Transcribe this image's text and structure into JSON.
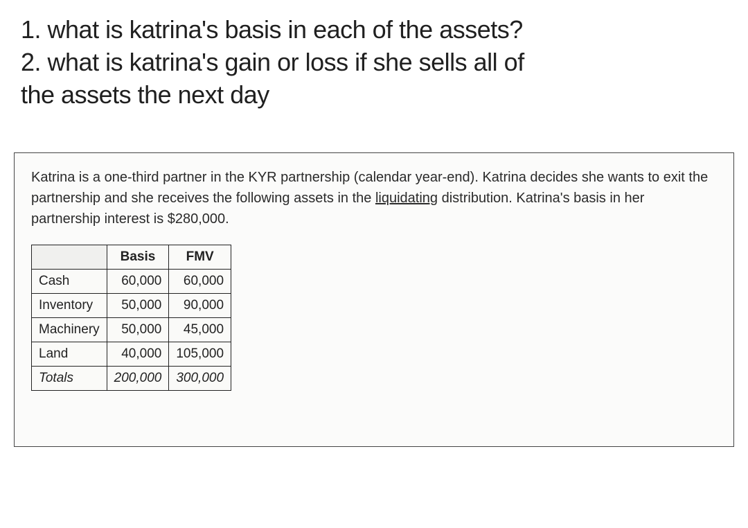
{
  "questions": {
    "q1": "1. what is katrina's basis in each of the assets?",
    "q2_part1": "2. what is katrina's gain or loss if she sells all of",
    "q2_part2": "the assets the next day"
  },
  "scenario": {
    "text_before_underline": "Katrina is a one-third partner in the KYR partnership (calendar year-end). Katrina decides she wants to exit the partnership and she receives the following assets in the ",
    "underline_word": "liquidating",
    "text_after_underline": " distribution. Katrina's basis in her partnership interest is $280,000."
  },
  "table": {
    "headers": {
      "col1": "",
      "col2": "Basis",
      "col3": "FMV"
    },
    "rows": [
      {
        "label": "Cash",
        "basis": "60,000",
        "fmv": "60,000"
      },
      {
        "label": "Inventory",
        "basis": "50,000",
        "fmv": "90,000"
      },
      {
        "label": "Machinery",
        "basis": "50,000",
        "fmv": "45,000"
      },
      {
        "label": "Land",
        "basis": "40,000",
        "fmv": "105,000"
      }
    ],
    "totals": {
      "label": "Totals",
      "basis": "200,000",
      "fmv": "300,000"
    }
  },
  "styles": {
    "question_fontsize": 36,
    "scenario_fontsize": 20,
    "table_fontsize": 19,
    "text_color": "#1a1a1a",
    "scenario_bg": "#fbfbfa",
    "border_color": "#222222",
    "page_bg": "#ffffff"
  }
}
